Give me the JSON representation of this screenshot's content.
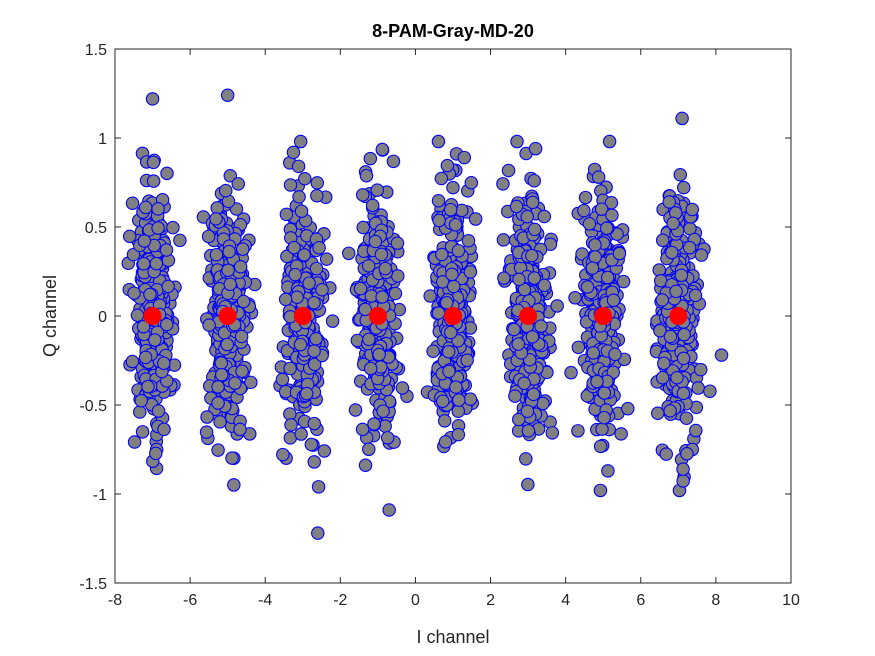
{
  "chart_data": {
    "type": "scatter",
    "title": "8-PAM-Gray-MD-20",
    "xlabel": "I channel",
    "ylabel": "Q channel",
    "xlim": [
      -8,
      10
    ],
    "ylim": [
      -1.5,
      1.5
    ],
    "x_ticks": [
      -8,
      -6,
      -4,
      -2,
      0,
      2,
      4,
      6,
      8,
      10
    ],
    "y_ticks": [
      -1.5,
      -1,
      -0.5,
      0,
      0.5,
      1,
      1.5
    ],
    "grid": false,
    "series": [
      {
        "marker_fill": "#808080",
        "marker_edge": "#0000ff",
        "clusters": [
          {
            "center": -7,
            "spread_x": 0.45,
            "spread_y": 0.33
          },
          {
            "center": -5,
            "spread_x": 0.45,
            "spread_y": 0.33
          },
          {
            "center": -3,
            "spread_x": 0.45,
            "spread_y": 0.33
          },
          {
            "center": -1,
            "spread_x": 0.45,
            "spread_y": 0.33
          },
          {
            "center": 1,
            "spread_x": 0.45,
            "spread_y": 0.33
          },
          {
            "center": 3,
            "spread_x": 0.45,
            "spread_y": 0.33
          },
          {
            "center": 5,
            "spread_x": 0.45,
            "spread_y": 0.33
          },
          {
            "center": 7,
            "spread_x": 0.45,
            "spread_y": 0.33
          }
        ],
        "outliers": [
          {
            "x": -7.0,
            "y": 1.22
          },
          {
            "x": -5.0,
            "y": 1.24
          },
          {
            "x": 7.1,
            "y": 1.11
          },
          {
            "x": -2.6,
            "y": -1.22
          },
          {
            "x": -0.7,
            "y": -1.09
          },
          {
            "x": 8.15,
            "y": -0.22
          },
          {
            "x": 3.2,
            "y": 0.94
          },
          {
            "x": 1.3,
            "y": 0.89
          }
        ]
      },
      {
        "marker_fill": "#ff0000",
        "marker_edge": "#ff0000",
        "points": [
          {
            "x": -7,
            "y": 0
          },
          {
            "x": -5,
            "y": 0
          },
          {
            "x": -3,
            "y": 0
          },
          {
            "x": -1,
            "y": 0
          },
          {
            "x": 1,
            "y": 0
          },
          {
            "x": 3,
            "y": 0
          },
          {
            "x": 5,
            "y": 0
          },
          {
            "x": 7,
            "y": 0
          }
        ]
      }
    ]
  }
}
